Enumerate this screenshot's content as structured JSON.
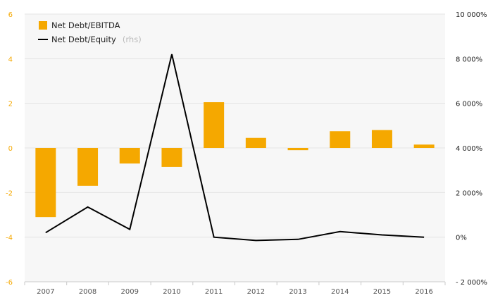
{
  "chart_data": {
    "type": "bar",
    "categories": [
      "2007",
      "2008",
      "2009",
      "2010",
      "2011",
      "2012",
      "2013",
      "2014",
      "2015",
      "2016"
    ],
    "series": [
      {
        "name": "Net Debt/EBITDA",
        "type": "bar",
        "axis": "left",
        "color": "#f5a800",
        "values": [
          -3.1,
          -1.7,
          -0.7,
          -0.85,
          2.05,
          0.45,
          -0.1,
          0.75,
          0.8,
          0.15
        ]
      },
      {
        "name": "Net Debt/Equity",
        "type": "line",
        "axis": "right",
        "color": "#000000",
        "values": [
          200,
          1350,
          350,
          8200,
          0,
          -150,
          -100,
          250,
          100,
          0
        ]
      }
    ],
    "legend": {
      "position": "top-left",
      "items": [
        {
          "label": "Net Debt/EBITDA",
          "suffix": ""
        },
        {
          "label": "Net Debt/Equity",
          "suffix": "(rhs)"
        }
      ]
    },
    "left_axis": {
      "ylim": [
        -6,
        6
      ],
      "ticks": [
        "6",
        "4",
        "2",
        "0",
        "-2",
        "-4",
        "-6"
      ],
      "tick_values": [
        6,
        4,
        2,
        0,
        -2,
        -4,
        -6
      ]
    },
    "right_axis": {
      "ylim": [
        -2000,
        10000
      ],
      "ticks": [
        "10 000%",
        "8 000%",
        "6 000%",
        "4 000%",
        "2 000%",
        "0%",
        "- 2 000%"
      ],
      "tick_values": [
        10000,
        8000,
        6000,
        4000,
        2000,
        0,
        -2000
      ]
    },
    "grid": true,
    "plot_background": "#f7f7f7",
    "title": "",
    "xlabel": "",
    "ylabel": ""
  }
}
